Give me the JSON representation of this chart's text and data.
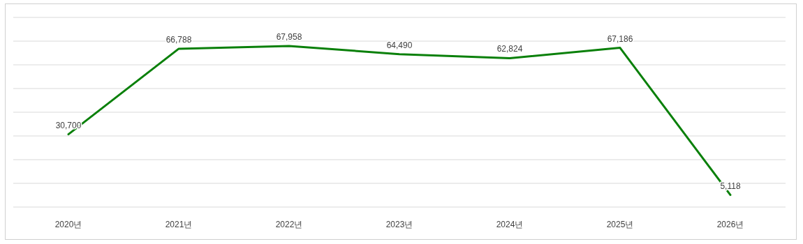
{
  "chart_data": {
    "type": "line",
    "categories": [
      "2020년",
      "2021년",
      "2022년",
      "2023년",
      "2024년",
      "2025년",
      "2026년"
    ],
    "series": [
      {
        "color": "#0a800a",
        "values": [
          30700,
          66788,
          67958,
          64490,
          62824,
          67186,
          5118
        ],
        "value_labels": [
          "30,700",
          "66,788",
          "67,958",
          "64,490",
          "62,824",
          "67,186",
          "5,118"
        ]
      }
    ],
    "ylim": [
      0,
      80000
    ],
    "yticks": [
      {
        "value": 0,
        "label": null
      },
      {
        "value": 10000,
        "label": null
      },
      {
        "value": 20000,
        "label": null
      },
      {
        "value": 30000,
        "label": null
      },
      {
        "value": 40000,
        "label": null
      },
      {
        "value": 50000,
        "label": null
      },
      {
        "value": 60000,
        "label": null
      },
      {
        "value": 70000,
        "label": null
      },
      {
        "value": 80000,
        "label": null
      }
    ],
    "grid": "y",
    "tick_labels": "x",
    "marker": "none",
    "line_style": "solid"
  }
}
